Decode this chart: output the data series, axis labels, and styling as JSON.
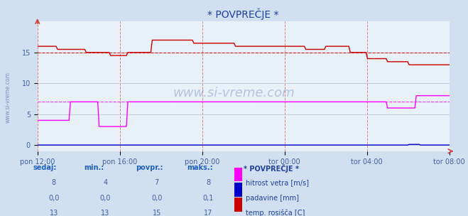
{
  "title": "* POVPREČJE *",
  "bg_color": "#d0e0f0",
  "plot_bg_color": "#e8f0f8",
  "grid_color": "#c0c8d8",
  "grid_color_red": "#e08080",
  "xticklabels": [
    "pon 12:00",
    "pon 16:00",
    "pon 20:00",
    "tor 00:00",
    "tor 04:00",
    "tor 08:00"
  ],
  "yticks": [
    0,
    5,
    10,
    15
  ],
  "ymax": 20,
  "ymin": -1,
  "series": {
    "hitrost_vetra": {
      "color": "#ff00ff",
      "label": "hitrost vetra [m/s]",
      "sedaj": 8,
      "min": 4,
      "povpr": 7,
      "maks": 8,
      "avg": 7
    },
    "padavine": {
      "color": "#0000cc",
      "label": "padavine [mm]",
      "sedaj": 0.0,
      "min": 0.0,
      "povpr": 0.0,
      "maks": 0.1,
      "avg": 0.0
    },
    "temp_rosisca": {
      "color": "#cc0000",
      "label": "temp. rosišča [C]",
      "sedaj": 13,
      "min": 13,
      "povpr": 15,
      "maks": 17,
      "avg": 15
    }
  },
  "legend_title": "* POVPREČJE *",
  "table_headers": [
    "sedaj:",
    "min.:",
    "povpr.:",
    "maks.:"
  ],
  "table_data": [
    [
      "8",
      "4",
      "7",
      "8"
    ],
    [
      "0,0",
      "0,0",
      "0,0",
      "0,1"
    ],
    [
      "13",
      "13",
      "15",
      "17"
    ]
  ]
}
